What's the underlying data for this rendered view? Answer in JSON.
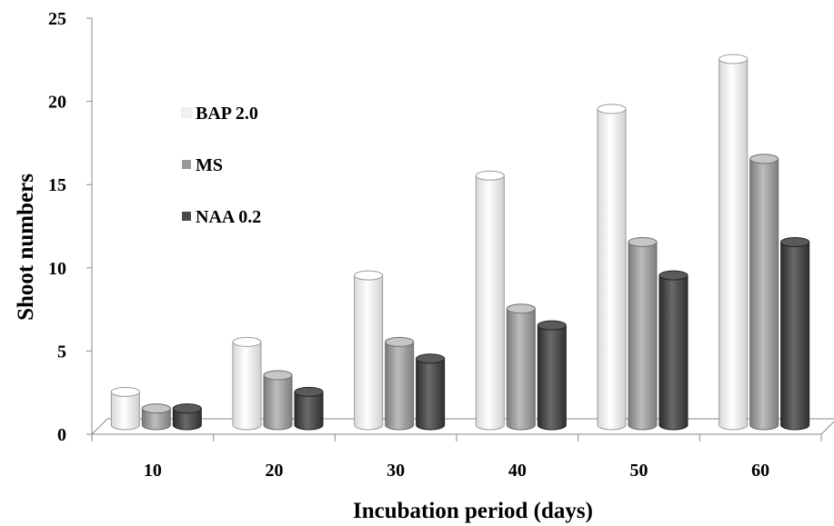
{
  "chart_data": {
    "type": "bar",
    "style": "3d-cylinder",
    "title": "",
    "xlabel": "Incubation period (days)",
    "ylabel": "Shoot numbers",
    "categories": [
      "10",
      "20",
      "30",
      "40",
      "50",
      "60"
    ],
    "series": [
      {
        "name": "BAP 2.0",
        "values": [
          2,
          5,
          9,
          15,
          19,
          22
        ],
        "color": "#ffffff"
      },
      {
        "name": "MS",
        "values": [
          1,
          3,
          5,
          7,
          11,
          16
        ],
        "color": "#999999"
      },
      {
        "name": "NAA 0.2",
        "values": [
          1,
          2,
          4,
          6,
          9,
          11
        ],
        "color": "#4a4a4a"
      }
    ],
    "ylim": [
      0,
      25
    ],
    "yticks": [
      0,
      5,
      10,
      15,
      20,
      25
    ],
    "grid": false,
    "legend_position": "top-left"
  }
}
